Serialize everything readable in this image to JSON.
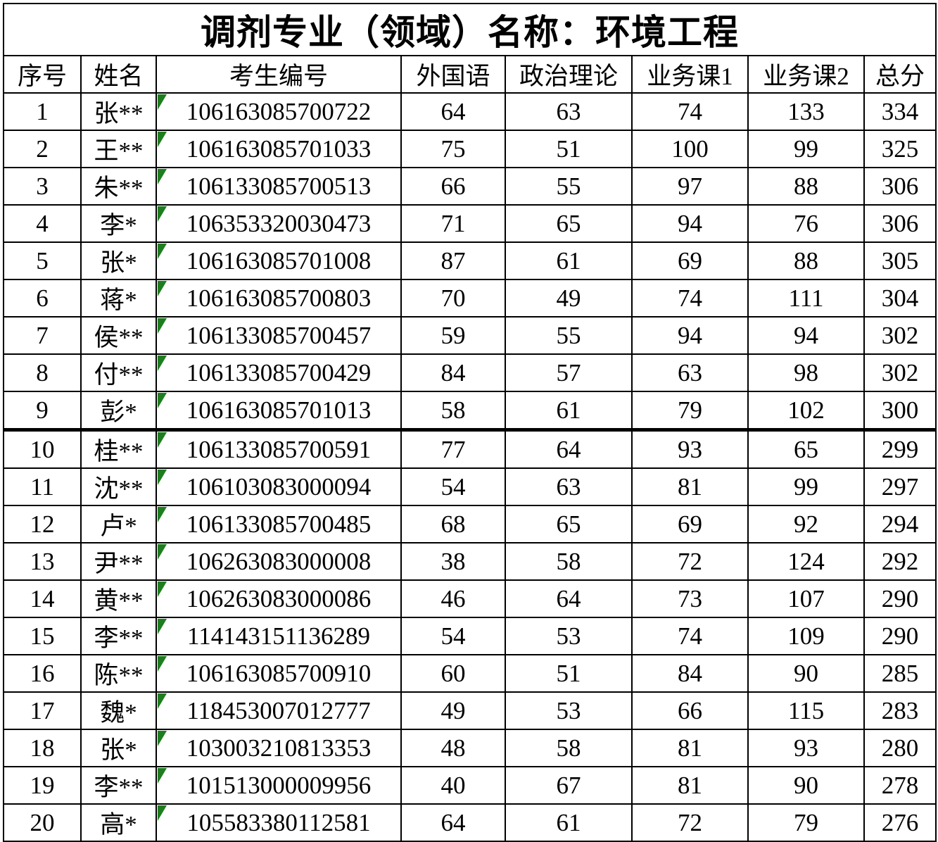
{
  "title": "调剂专业（领域）名称：环境工程",
  "table": {
    "headers": [
      "序号",
      "姓名",
      "考生编号",
      "外国语",
      "政治理论",
      "业务课1",
      "业务课2",
      "总分"
    ],
    "col_keys": [
      "index",
      "name",
      "candidate-id",
      "foreign-language",
      "political-theory",
      "business-course-1",
      "business-course-2",
      "total-score"
    ],
    "rows": [
      {
        "cells": [
          "1",
          "张**",
          "106163085700722",
          "64",
          "63",
          "74",
          "133",
          "334"
        ]
      },
      {
        "cells": [
          "2",
          "王**",
          "106163085701033",
          "75",
          "51",
          "100",
          "99",
          "325"
        ]
      },
      {
        "cells": [
          "3",
          "朱**",
          "106133085700513",
          "66",
          "55",
          "97",
          "88",
          "306"
        ]
      },
      {
        "cells": [
          "4",
          "李*",
          "106353320030473",
          "71",
          "65",
          "94",
          "76",
          "306"
        ]
      },
      {
        "cells": [
          "5",
          "张*",
          "106163085701008",
          "87",
          "61",
          "69",
          "88",
          "305"
        ]
      },
      {
        "cells": [
          "6",
          "蒋*",
          "106163085700803",
          "70",
          "49",
          "74",
          "111",
          "304"
        ]
      },
      {
        "cells": [
          "7",
          "侯**",
          "106133085700457",
          "59",
          "55",
          "94",
          "94",
          "302"
        ]
      },
      {
        "cells": [
          "8",
          "付**",
          "106133085700429",
          "84",
          "57",
          "63",
          "98",
          "302"
        ]
      },
      {
        "cells": [
          "9",
          "彭*",
          "106163085701013",
          "58",
          "61",
          "79",
          "102",
          "300"
        ]
      },
      {
        "cells": [
          "10",
          "桂**",
          "106133085700591",
          "77",
          "64",
          "93",
          "65",
          "299"
        ]
      },
      {
        "cells": [
          "11",
          "沈**",
          "106103083000094",
          "54",
          "63",
          "81",
          "99",
          "297"
        ]
      },
      {
        "cells": [
          "12",
          "卢*",
          "106133085700485",
          "68",
          "65",
          "69",
          "92",
          "294"
        ]
      },
      {
        "cells": [
          "13",
          "尹**",
          "106263083000008",
          "38",
          "58",
          "72",
          "124",
          "292"
        ]
      },
      {
        "cells": [
          "14",
          "黄**",
          "106263083000086",
          "46",
          "64",
          "73",
          "107",
          "290"
        ]
      },
      {
        "cells": [
          "15",
          "李**",
          "114143151136289",
          "54",
          "53",
          "74",
          "109",
          "290"
        ]
      },
      {
        "cells": [
          "16",
          "陈**",
          "106163085700910",
          "60",
          "51",
          "84",
          "90",
          "285"
        ]
      },
      {
        "cells": [
          "17",
          "魏*",
          "118453007012777",
          "49",
          "53",
          "66",
          "115",
          "283"
        ]
      },
      {
        "cells": [
          "18",
          "张*",
          "103003210813353",
          "48",
          "58",
          "81",
          "93",
          "280"
        ]
      },
      {
        "cells": [
          "19",
          "李**",
          "101513000009956",
          "40",
          "67",
          "81",
          "90",
          "278"
        ]
      },
      {
        "cells": [
          "20",
          "高*",
          "105583380112581",
          "64",
          "61",
          "72",
          "79",
          "276"
        ]
      }
    ]
  },
  "icons": {
    "error_indicator": "green-corner-triangle"
  },
  "colors": {
    "error_indicator_green": "#1e7d1e",
    "grid_border": "#000000",
    "background": "#ffffff"
  }
}
